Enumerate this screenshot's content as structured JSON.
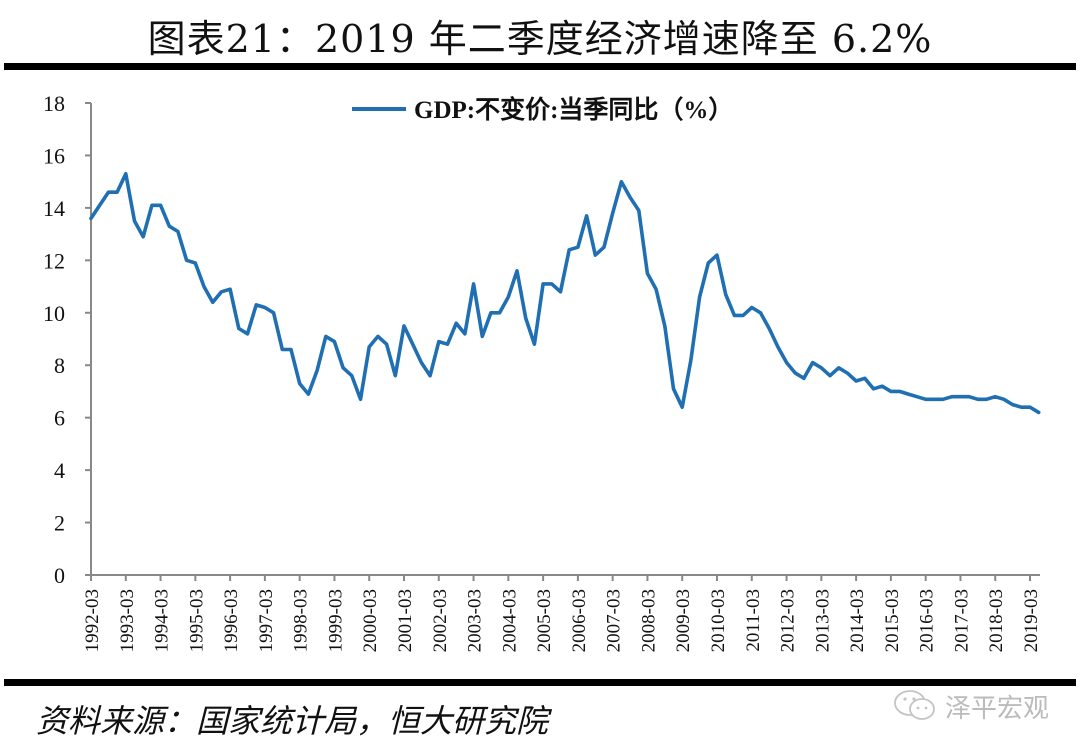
{
  "header": {
    "title": "图表21：2019 年二季度经济增速降至 6.2%"
  },
  "footer": {
    "source": "资料来源：国家统计局，恒大研究院",
    "watermark_text": "泽平宏观",
    "watermark_icon": "wechat-icon"
  },
  "colors": {
    "series": "#1f6fb2",
    "axis": "#888888",
    "rule": "#000000"
  },
  "chart_data": {
    "type": "line",
    "title": "图表21：2019 年二季度经济增速降至 6.2%",
    "xlabel": "",
    "ylabel": "",
    "ylim": [
      0,
      18
    ],
    "yticks": [
      "0",
      "2",
      "4",
      "6",
      "8",
      "10",
      "12",
      "14",
      "16",
      "18"
    ],
    "xtick_labels": [
      "1992-03",
      "1993-03",
      "1994-03",
      "1995-03",
      "1996-03",
      "1997-03",
      "1998-03",
      "1999-03",
      "2000-03",
      "2001-03",
      "2002-03",
      "2003-03",
      "2004-03",
      "2005-03",
      "2006-03",
      "2007-03",
      "2008-03",
      "2009-03",
      "2010-03",
      "2011-03",
      "2012-03",
      "2013-03",
      "2014-03",
      "2015-03",
      "2016-03",
      "2017-03",
      "2018-03",
      "2019-03"
    ],
    "grid": false,
    "legend": "top-center",
    "series": [
      {
        "name": "GDP:不变价:当季同比（%）",
        "x_start": "1992-03",
        "frequency": "quarterly",
        "values": [
          13.6,
          14.1,
          14.6,
          14.6,
          15.3,
          13.5,
          12.9,
          14.1,
          14.1,
          13.3,
          13.1,
          12.0,
          11.9,
          11.0,
          10.4,
          10.8,
          10.9,
          9.4,
          9.2,
          10.3,
          10.2,
          10.0,
          8.6,
          8.6,
          7.3,
          6.9,
          7.8,
          9.1,
          8.9,
          7.9,
          7.6,
          6.7,
          8.7,
          9.1,
          8.8,
          7.6,
          9.5,
          8.8,
          8.1,
          7.6,
          8.9,
          8.8,
          9.6,
          9.2,
          11.1,
          9.1,
          10.0,
          10.0,
          10.6,
          11.6,
          9.8,
          8.8,
          11.1,
          11.1,
          10.8,
          12.4,
          12.5,
          13.7,
          12.2,
          12.5,
          13.8,
          15.0,
          14.4,
          13.9,
          11.5,
          10.9,
          9.5,
          7.1,
          6.4,
          8.2,
          10.6,
          11.9,
          12.2,
          10.7,
          9.9,
          9.9,
          10.2,
          10.0,
          9.4,
          8.7,
          8.1,
          7.7,
          7.5,
          8.1,
          7.9,
          7.6,
          7.9,
          7.7,
          7.4,
          7.5,
          7.1,
          7.2,
          7.0,
          7.0,
          6.9,
          6.8,
          6.7,
          6.7,
          6.7,
          6.8,
          6.8,
          6.8,
          6.7,
          6.7,
          6.8,
          6.7,
          6.5,
          6.4,
          6.4,
          6.2
        ]
      }
    ]
  }
}
